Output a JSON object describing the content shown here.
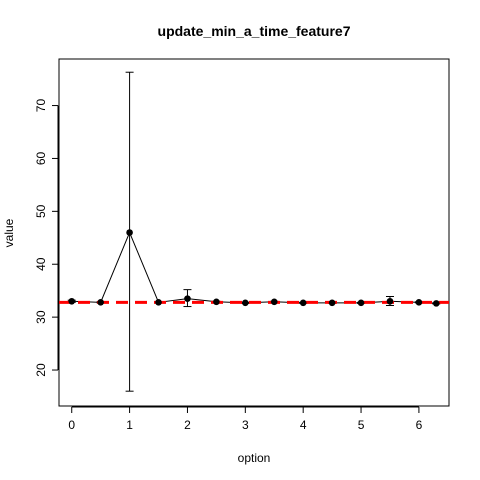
{
  "chart_data": {
    "type": "line",
    "title": "update_min_a_time_feature7",
    "xlabel": "option",
    "ylabel": "value",
    "xlim": [
      -0.22,
      6.52
    ],
    "ylim": [
      13.2,
      78.8
    ],
    "x_ticks": [
      0,
      1,
      2,
      3,
      4,
      5,
      6
    ],
    "y_ticks": [
      20,
      30,
      40,
      50,
      60,
      70
    ],
    "grid": false,
    "legend": "none",
    "series": [
      {
        "x": [
          0,
          0.5,
          1,
          1.5,
          2,
          2.5,
          3,
          3.5,
          4,
          4.5,
          5,
          5.5,
          6,
          6.3
        ],
        "y": [
          33.0,
          32.8,
          46.0,
          32.8,
          33.5,
          32.9,
          32.7,
          32.9,
          32.7,
          32.7,
          32.7,
          33.0,
          32.8,
          32.6
        ],
        "err_low": [
          32.8,
          32.7,
          16.0,
          32.7,
          32.0,
          32.8,
          32.6,
          32.8,
          32.6,
          32.6,
          32.6,
          32.2,
          32.7,
          32.5
        ],
        "err_high": [
          33.2,
          32.9,
          76.3,
          32.9,
          35.2,
          33.0,
          32.8,
          33.0,
          32.8,
          32.8,
          32.8,
          33.9,
          32.9,
          32.7
        ],
        "color": "#000000"
      }
    ],
    "reference_line": {
      "y": 32.8,
      "color": "#ff0000",
      "style": "dashed"
    }
  }
}
